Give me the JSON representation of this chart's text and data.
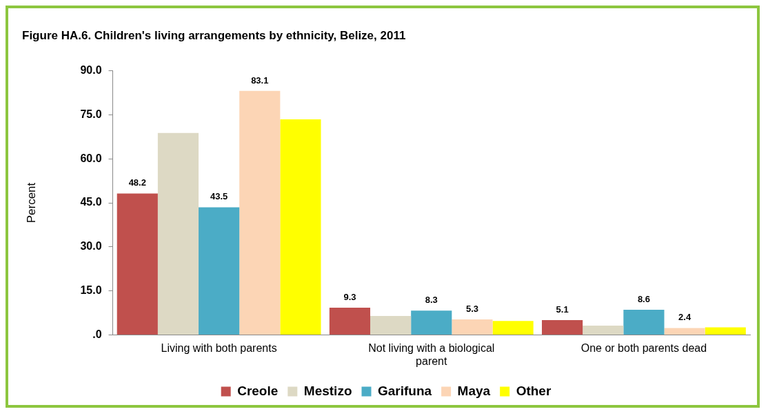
{
  "chart_data": {
    "type": "bar",
    "title": "Figure HA.6. Children's living arrangements by ethnicity, Belize, 2011",
    "ylabel": "Percent",
    "categories": [
      "Living with both parents",
      "Not living with a biological parent",
      "One or both parents dead"
    ],
    "series": [
      {
        "name": "Creole",
        "color": "#c0504d",
        "values": [
          48.2,
          9.3,
          5.1
        ],
        "value_labels": [
          "48.2",
          "9.3",
          "5.1"
        ]
      },
      {
        "name": "Mestizo",
        "color": "#ddd9c4",
        "values": [
          68.8,
          6.5,
          3.2
        ]
      },
      {
        "name": "Garifuna",
        "color": "#4bacc6",
        "values": [
          43.5,
          8.3,
          8.6
        ],
        "value_labels": [
          "43.5",
          "8.3",
          "8.6"
        ]
      },
      {
        "name": "Maya",
        "color": "#fcd5b5",
        "values": [
          83.1,
          5.3,
          2.4
        ],
        "value_labels": [
          "83.1",
          "5.3",
          "2.4"
        ]
      },
      {
        "name": "Other",
        "color": "#ffff00",
        "values": [
          73.4,
          4.8,
          2.6
        ]
      }
    ],
    "ylim": [
      0,
      90
    ],
    "yticks": [
      {
        "value": 0,
        "label": ".0"
      },
      {
        "value": 15,
        "label": "15.0"
      },
      {
        "value": 30,
        "label": "30.0"
      },
      {
        "value": 45,
        "label": "45.0"
      },
      {
        "value": 60,
        "label": "60.0"
      },
      {
        "value": 75,
        "label": "75.0"
      },
      {
        "value": 90,
        "label": "90.0"
      }
    ],
    "grid": false,
    "legend": "bottom"
  }
}
